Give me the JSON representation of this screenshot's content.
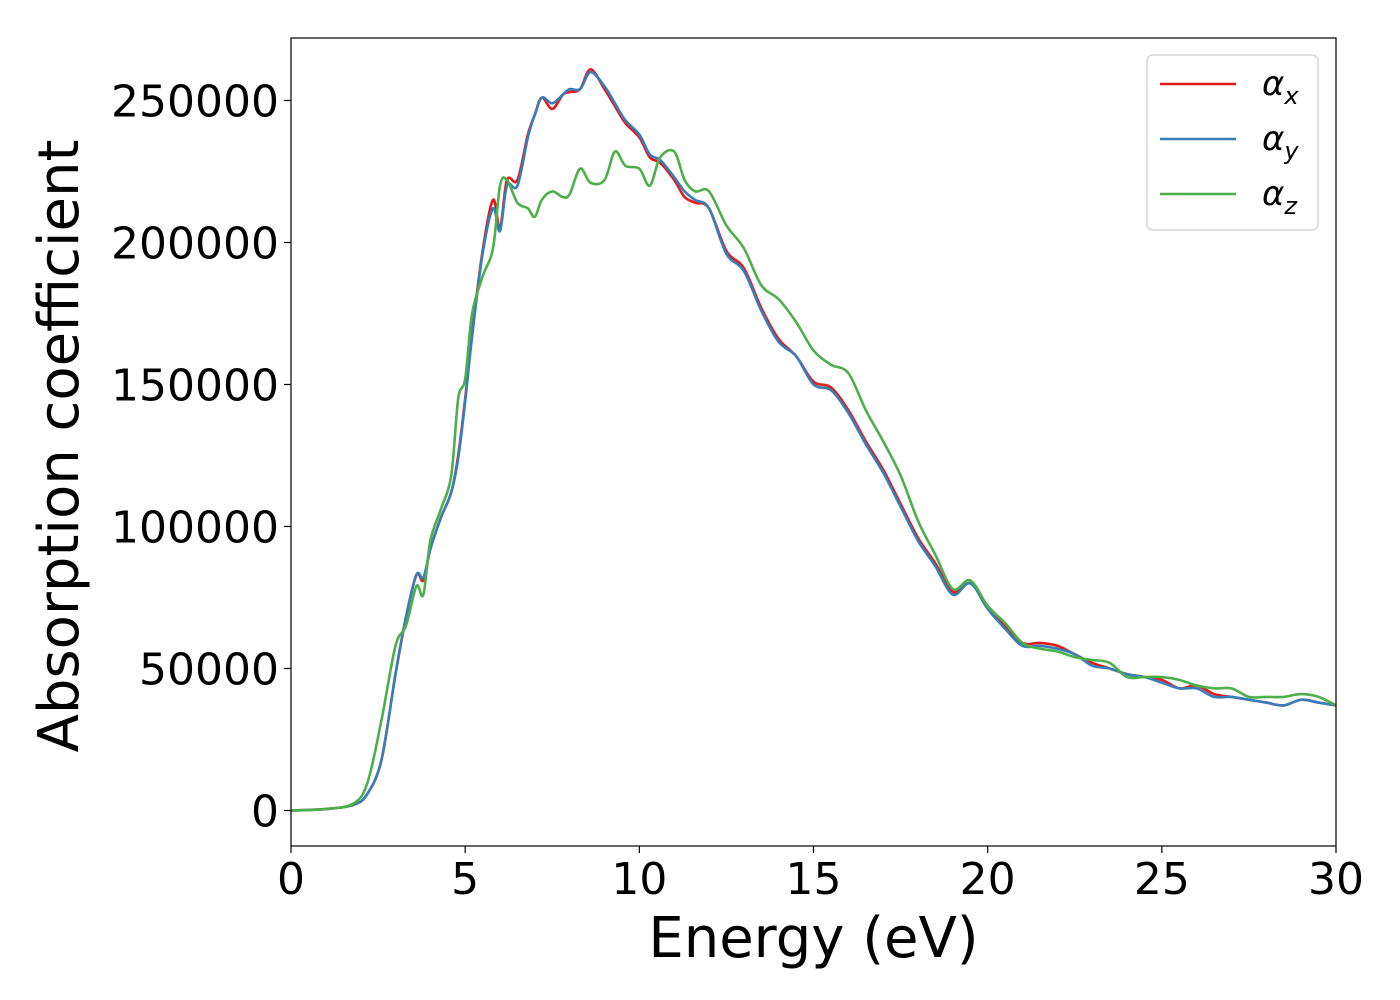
{
  "chart_data": {
    "type": "line",
    "title": "",
    "xlabel": "Energy (eV)",
    "ylabel": "Absorption coefficient",
    "xlim": [
      0,
      30
    ],
    "ylim": [
      -12500,
      272000
    ],
    "xticks": [
      0,
      5,
      10,
      15,
      20,
      25,
      30
    ],
    "xtick_labels": [
      "0",
      "5",
      "10",
      "15",
      "20",
      "25",
      "30"
    ],
    "yticks": [
      0,
      50000,
      100000,
      150000,
      200000,
      250000
    ],
    "ytick_labels": [
      "0",
      "50000",
      "100000",
      "150000",
      "200000",
      "250000"
    ],
    "grid": false,
    "legend_position": "top-right",
    "x": [
      0,
      1,
      1.8,
      2.2,
      2.6,
      3.0,
      3.3,
      3.6,
      3.8,
      4.0,
      4.3,
      4.6,
      4.8,
      5.0,
      5.2,
      5.5,
      5.8,
      6.0,
      6.2,
      6.5,
      6.8,
      7.0,
      7.2,
      7.5,
      7.8,
      8.0,
      8.3,
      8.6,
      9.0,
      9.3,
      9.6,
      10.0,
      10.3,
      10.6,
      11.0,
      11.3,
      11.6,
      12.0,
      12.5,
      13.0,
      13.5,
      14.0,
      14.5,
      15.0,
      15.5,
      16.0,
      16.5,
      17.0,
      17.5,
      18.0,
      18.5,
      19.0,
      19.5,
      20.0,
      20.5,
      21.0,
      21.5,
      22.0,
      22.5,
      23.0,
      23.5,
      24.0,
      24.5,
      25.0,
      25.5,
      26.0,
      26.5,
      27.0,
      27.5,
      28.0,
      28.5,
      29.0,
      29.5,
      30.0
    ],
    "series": [
      {
        "name": "α",
        "subscript": "x",
        "color": "#e41a1c",
        "values": [
          0,
          500,
          2000,
          6000,
          18000,
          48000,
          68000,
          83000,
          81000,
          92000,
          103000,
          112000,
          125000,
          145000,
          168000,
          197000,
          215000,
          205000,
          222000,
          222000,
          238000,
          245000,
          251000,
          247000,
          252000,
          253000,
          254000,
          261000,
          254000,
          248000,
          242000,
          237000,
          230000,
          228000,
          222000,
          216000,
          214000,
          212000,
          197000,
          191000,
          177000,
          166000,
          160000,
          151000,
          149000,
          141000,
          130000,
          120000,
          108000,
          96000,
          87000,
          77000,
          80000,
          72000,
          65000,
          59000,
          59000,
          58000,
          55000,
          52000,
          50000,
          48000,
          47000,
          46000,
          43000,
          44000,
          41000,
          40000,
          39000,
          38000,
          37000,
          39000,
          38000,
          37000
        ]
      },
      {
        "name": "α",
        "subscript": "y",
        "color": "#377eb8",
        "values": [
          0,
          500,
          2000,
          6000,
          18000,
          48000,
          68000,
          83000,
          82000,
          92000,
          103000,
          112000,
          124000,
          144000,
          167000,
          196000,
          212000,
          204000,
          220000,
          220000,
          237000,
          245000,
          251000,
          249000,
          252000,
          254000,
          254000,
          260000,
          255000,
          249000,
          243000,
          238000,
          231000,
          229000,
          223000,
          218000,
          215000,
          212000,
          196000,
          190000,
          176000,
          165000,
          160000,
          150000,
          148000,
          140000,
          129000,
          119000,
          107000,
          95000,
          86000,
          76000,
          80000,
          71000,
          64000,
          58000,
          58000,
          57000,
          55000,
          51000,
          50000,
          48000,
          47000,
          45000,
          43000,
          43000,
          40000,
          40000,
          39000,
          38000,
          37000,
          39000,
          38000,
          37000
        ]
      },
      {
        "name": "α",
        "subscript": "z",
        "color": "#4daf4a",
        "values": [
          0,
          500,
          2500,
          10000,
          32000,
          58000,
          65000,
          79000,
          76000,
          95000,
          106000,
          118000,
          145000,
          152000,
          175000,
          188000,
          198000,
          220000,
          222000,
          214000,
          212000,
          209000,
          215000,
          218000,
          216000,
          217000,
          226000,
          221000,
          222000,
          232000,
          227000,
          226000,
          220000,
          230000,
          232000,
          222000,
          218000,
          218000,
          206000,
          198000,
          185000,
          180000,
          172000,
          162000,
          157000,
          154000,
          141000,
          130000,
          118000,
          102000,
          90000,
          78000,
          81000,
          72000,
          66000,
          59000,
          57000,
          56000,
          54000,
          53000,
          52000,
          47000,
          47000,
          47000,
          46000,
          44000,
          43000,
          43000,
          40000,
          40000,
          40000,
          41000,
          40000,
          37000
        ]
      }
    ]
  }
}
